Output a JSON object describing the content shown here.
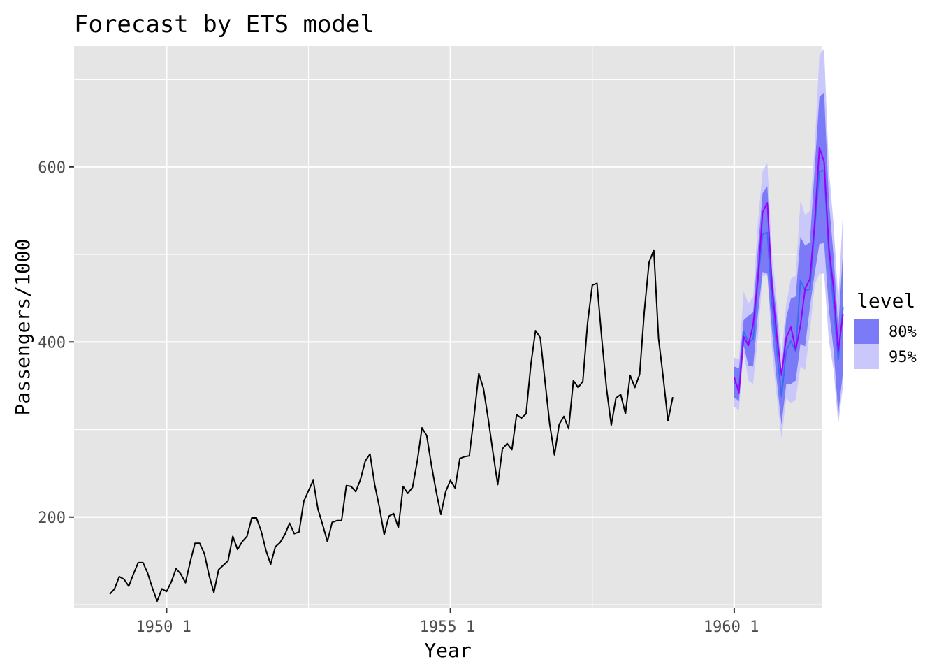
{
  "chart_data": {
    "type": "line",
    "title": "Forecast by ETS model",
    "xlabel": "Year",
    "ylabel": "Passengers/1000",
    "xlim": [
      1948.37,
      1961.54
    ],
    "ylim": [
      96,
      738
    ],
    "x_ticks": [
      {
        "value": 1950,
        "label": "1950  1"
      },
      {
        "value": 1955,
        "label": "1955  1"
      },
      {
        "value": 1960,
        "label": "1960  1"
      }
    ],
    "y_ticks": [
      {
        "value": 200,
        "label": "200"
      },
      {
        "value": 400,
        "label": "400"
      },
      {
        "value": 600,
        "label": "600"
      }
    ],
    "grid": true,
    "legend": {
      "title": "level",
      "position": "right",
      "entries": [
        {
          "label": "80%",
          "color": "#7b7bf7"
        },
        {
          "label": "95%",
          "color": "#cac7fb"
        }
      ]
    },
    "series": [
      {
        "role": "history",
        "color": "#000000",
        "start": [
          1949,
          1
        ],
        "values": [
          112,
          118,
          132,
          129,
          121,
          135,
          148,
          148,
          136,
          119,
          104,
          118,
          115,
          126,
          141,
          135,
          125,
          149,
          170,
          170,
          158,
          133,
          114,
          140,
          145,
          150,
          178,
          163,
          172,
          178,
          199,
          199,
          184,
          162,
          146,
          166,
          171,
          180,
          193,
          181,
          183,
          218,
          230,
          242,
          209,
          191,
          172,
          194,
          196,
          196,
          236,
          235,
          229,
          243,
          264,
          272,
          237,
          211,
          180,
          201,
          204,
          188,
          235,
          227,
          234,
          264,
          302,
          293,
          259,
          229,
          203,
          229,
          242,
          233,
          267,
          269,
          270,
          315,
          364,
          347,
          312,
          274,
          237,
          278,
          284,
          277,
          317,
          313,
          318,
          374,
          413,
          405,
          355,
          306,
          271,
          306,
          315,
          301,
          356,
          348,
          355,
          422,
          465,
          467,
          404,
          347,
          305,
          336,
          340,
          318,
          362,
          348,
          363,
          435,
          491,
          505,
          404,
          359,
          310,
          337
        ]
      },
      {
        "role": "actual",
        "color": "#9b00ff",
        "start": [
          1960,
          1
        ],
        "values": [
          360,
          342,
          406,
          396,
          420,
          472,
          548,
          559,
          463,
          407,
          362,
          405,
          417,
          391,
          419,
          461,
          472,
          535,
          622,
          606,
          508,
          461,
          390,
          432
        ]
      },
      {
        "role": "point-forecast",
        "color": "#3a6cf0",
        "start": [
          1960,
          1
        ],
        "values": [
          354,
          348,
          412,
          400,
          403,
          470,
          523,
          525,
          444,
          392,
          338,
          390,
          401,
          389,
          470,
          459,
          460,
          530,
          595,
          596,
          501,
          443,
          380,
          440
        ]
      }
    ],
    "intervals": {
      "start": [
        1960,
        1
      ],
      "lo95": [
        326,
        322,
        388,
        356,
        352,
        405,
        475,
        476,
        390,
        338,
        290,
        336,
        330,
        334,
        372,
        368,
        412,
        465,
        478,
        478,
        402,
        368,
        306,
        350
      ],
      "hi95": [
        382,
        380,
        458,
        444,
        452,
        536,
        595,
        605,
        500,
        446,
        386,
        444,
        472,
        476,
        562,
        545,
        550,
        622,
        728,
        735,
        598,
        534,
        448,
        550
      ],
      "lo80": [
        336,
        333,
        396,
        373,
        372,
        431,
        480,
        478,
        412,
        356,
        306,
        352,
        352,
        356,
        398,
        395,
        440,
        478,
        512,
        513,
        438,
        391,
        318,
        366
      ],
      "hi80": [
        372,
        370,
        425,
        430,
        434,
        505,
        570,
        578,
        478,
        430,
        365,
        428,
        450,
        452,
        520,
        510,
        514,
        598,
        680,
        685,
        562,
        498,
        415,
        505
      ]
    }
  }
}
